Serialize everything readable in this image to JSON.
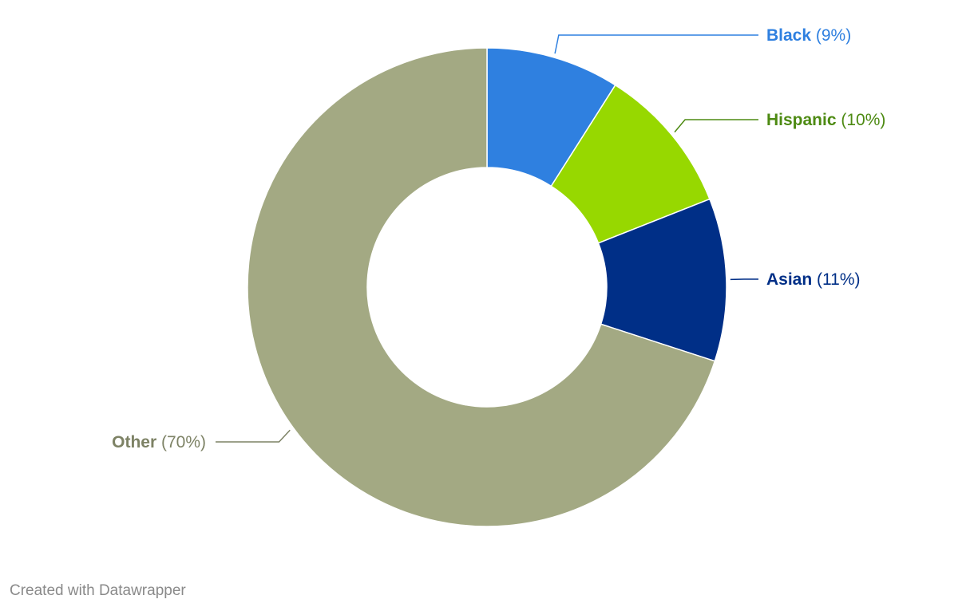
{
  "chart_data": {
    "type": "pie",
    "variant": "donut",
    "slices": [
      {
        "label": "Black",
        "value": 9,
        "value_label": "(9%)",
        "color": "#2f80e0",
        "label_color": "#2f80e0"
      },
      {
        "label": "Hispanic",
        "value": 10,
        "value_label": "(10%)",
        "color": "#97d800",
        "label_color": "#4d8a12"
      },
      {
        "label": "Asian",
        "value": 11,
        "value_label": "(11%)",
        "color": "#002f87",
        "label_color": "#002f87"
      },
      {
        "label": "Other",
        "value": 70,
        "value_label": "(70%)",
        "color": "#a3a983",
        "label_color": "#7d8265"
      }
    ],
    "legend": "none"
  },
  "footer": {
    "credit": "Created with Datawrapper"
  }
}
